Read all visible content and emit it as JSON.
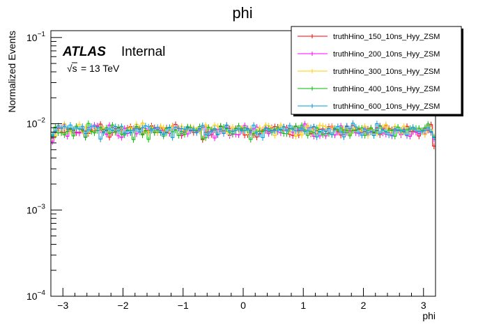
{
  "chart_data": {
    "type": "line",
    "title": "phi",
    "xlabel": "phi",
    "ylabel": "Normalized Events",
    "x_range": [
      -3.2,
      3.2
    ],
    "y_range": [
      0.0001,
      0.12
    ],
    "y_scale": "log",
    "grid": false,
    "legend_position": "top-right",
    "x_ticks": [
      -3,
      -2,
      -1,
      0,
      1,
      2,
      3
    ],
    "x_tick_labels": [
      "−3",
      "−2",
      "−1",
      "0",
      "1",
      "2",
      "3"
    ],
    "y_tick_labels": [
      {
        "base": "10",
        "exp": "−4",
        "value": 0.0001
      },
      {
        "base": "10",
        "exp": "−3",
        "value": 0.001
      },
      {
        "base": "10",
        "exp": "−2",
        "value": 0.01
      },
      {
        "base": "10",
        "exp": "−1",
        "value": 0.1
      }
    ],
    "annotations": {
      "atlas": "ATLAS",
      "internal": "Internal",
      "energy_sqrt": "√s",
      "energy_rest": "= 13 TeV"
    },
    "n_bins": 128,
    "series": [
      {
        "name": "truthHino_150_10ns_Hyy_ZSM",
        "color": "#ff0000",
        "level": 0.0085,
        "edge_low": 0.0068,
        "edge_high": 0.0055,
        "seed": 1
      },
      {
        "name": "truthHino_200_10ns_Hyy_ZSM",
        "color": "#ff00ff",
        "level": 0.0082,
        "edge_low": 0.0062,
        "edge_high": 0.0066,
        "seed": 2
      },
      {
        "name": "truthHino_300_10ns_Hyy_ZSM",
        "color": "#ffcc00",
        "level": 0.0086,
        "edge_low": 0.007,
        "edge_high": 0.0072,
        "seed": 3
      },
      {
        "name": "truthHino_400_10ns_Hyy_ZSM",
        "color": "#00bb00",
        "level": 0.0083,
        "edge_low": 0.0074,
        "edge_high": 0.007,
        "seed": 4
      },
      {
        "name": "truthHino_600_10ns_Hyy_ZSM",
        "color": "#0099dd",
        "level": 0.0084,
        "edge_low": 0.0072,
        "edge_high": 0.0069,
        "seed": 5
      }
    ]
  }
}
